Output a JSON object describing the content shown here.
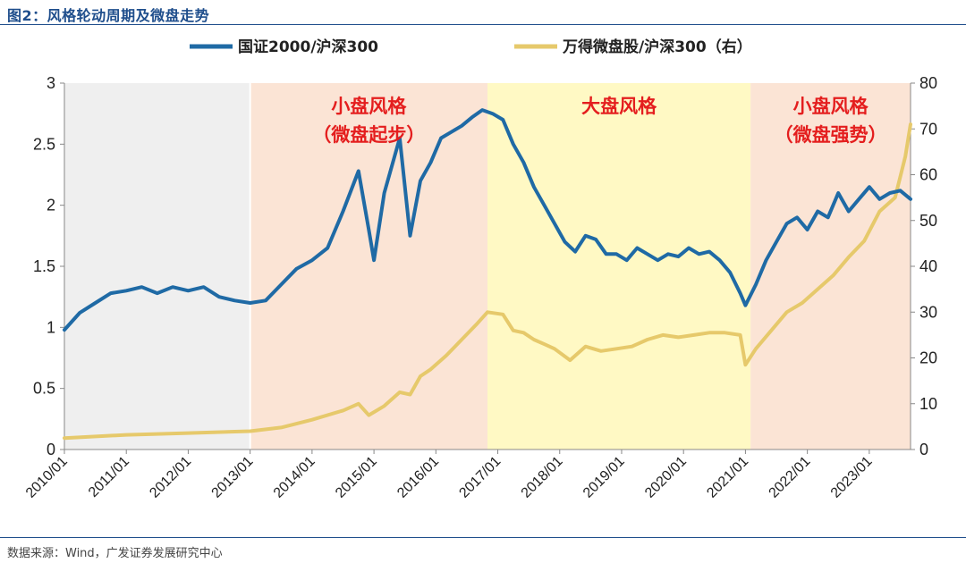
{
  "figure": {
    "title": "图2：风格轮动周期及微盘走势",
    "source": "数据来源：Wind，广发证券发展研究中心"
  },
  "chart_data": {
    "type": "line",
    "legend_position": "top-center",
    "grid": false,
    "x_ticks": [
      "2010/01",
      "2011/01",
      "2012/01",
      "2013/01",
      "2014/01",
      "2015/01",
      "2016/01",
      "2017/01",
      "2018/01",
      "2019/01",
      "2020/01",
      "2021/01",
      "2022/01",
      "2023/01"
    ],
    "x_range": [
      "2010-01",
      "2023-09"
    ],
    "y_left": {
      "min": 0,
      "max": 3,
      "ticks": [
        "0",
        "0.5",
        "1",
        "1.5",
        "2",
        "2.5",
        "3"
      ]
    },
    "y_right": {
      "min": 0,
      "max": 80,
      "ticks": [
        "0",
        "10",
        "20",
        "30",
        "40",
        "50",
        "60",
        "70",
        "80"
      ]
    },
    "regions": [
      {
        "start": "2010-01",
        "end": "2013-01",
        "color": "#efefef",
        "label": []
      },
      {
        "start": "2013-01",
        "end": "2016-11",
        "color": "#fbe4d5",
        "label": [
          "小盘风格",
          "（微盘起步）"
        ]
      },
      {
        "start": "2016-11",
        "end": "2021-02",
        "color": "#fff9c4",
        "label": [
          "大盘风格"
        ]
      },
      {
        "start": "2021-02",
        "end": "2023-09",
        "color": "#fbe4d5",
        "label": [
          "小盘风格",
          "（微盘强势）"
        ]
      }
    ],
    "series": [
      {
        "name": "国证2000/沪深300",
        "axis": "left",
        "color": "#1f6aa5",
        "x": [
          "2010-01",
          "2010-04",
          "2010-07",
          "2010-10",
          "2011-01",
          "2011-04",
          "2011-07",
          "2011-10",
          "2012-01",
          "2012-04",
          "2012-07",
          "2012-10",
          "2013-01",
          "2013-04",
          "2013-07",
          "2013-10",
          "2014-01",
          "2014-04",
          "2014-07",
          "2014-10",
          "2014-12",
          "2015-01",
          "2015-03",
          "2015-06",
          "2015-08",
          "2015-10",
          "2015-12",
          "2016-02",
          "2016-04",
          "2016-06",
          "2016-08",
          "2016-10",
          "2016-12",
          "2017-02",
          "2017-04",
          "2017-06",
          "2017-08",
          "2017-10",
          "2017-12",
          "2018-02",
          "2018-04",
          "2018-06",
          "2018-08",
          "2018-10",
          "2018-12",
          "2019-02",
          "2019-04",
          "2019-06",
          "2019-08",
          "2019-10",
          "2019-12",
          "2020-02",
          "2020-04",
          "2020-06",
          "2020-08",
          "2020-10",
          "2020-12",
          "2021-01",
          "2021-03",
          "2021-05",
          "2021-07",
          "2021-09",
          "2021-11",
          "2022-01",
          "2022-03",
          "2022-05",
          "2022-07",
          "2022-09",
          "2022-11",
          "2023-01",
          "2023-03",
          "2023-05",
          "2023-07",
          "2023-09"
        ],
        "values": [
          0.98,
          1.12,
          1.2,
          1.28,
          1.3,
          1.33,
          1.28,
          1.33,
          1.3,
          1.33,
          1.25,
          1.22,
          1.2,
          1.22,
          1.35,
          1.48,
          1.55,
          1.65,
          1.95,
          2.28,
          1.8,
          1.55,
          2.1,
          2.55,
          1.75,
          2.2,
          2.35,
          2.55,
          2.6,
          2.65,
          2.72,
          2.78,
          2.75,
          2.7,
          2.5,
          2.35,
          2.15,
          2.0,
          1.85,
          1.7,
          1.62,
          1.75,
          1.72,
          1.6,
          1.6,
          1.55,
          1.65,
          1.6,
          1.55,
          1.6,
          1.58,
          1.65,
          1.6,
          1.62,
          1.55,
          1.45,
          1.28,
          1.18,
          1.35,
          1.55,
          1.7,
          1.85,
          1.9,
          1.8,
          1.95,
          1.9,
          2.1,
          1.95,
          2.05,
          2.15,
          2.05,
          2.1,
          2.12,
          2.05
        ]
      },
      {
        "name": "万得微盘股/沪深300（右）",
        "axis": "right",
        "color": "#e6c96b",
        "x": [
          "2010-01",
          "2011-01",
          "2012-01",
          "2013-01",
          "2013-07",
          "2014-01",
          "2014-07",
          "2014-10",
          "2014-12",
          "2015-03",
          "2015-06",
          "2015-08",
          "2015-10",
          "2015-12",
          "2016-03",
          "2016-06",
          "2016-09",
          "2016-11",
          "2017-02",
          "2017-04",
          "2017-06",
          "2017-08",
          "2017-10",
          "2017-12",
          "2018-03",
          "2018-06",
          "2018-09",
          "2018-12",
          "2019-03",
          "2019-06",
          "2019-09",
          "2019-12",
          "2020-03",
          "2020-06",
          "2020-09",
          "2020-12",
          "2021-01",
          "2021-03",
          "2021-06",
          "2021-09",
          "2021-12",
          "2022-03",
          "2022-06",
          "2022-09",
          "2022-12",
          "2023-03",
          "2023-06",
          "2023-08",
          "2023-09"
        ],
        "values": [
          2.5,
          3.2,
          3.6,
          4.0,
          4.8,
          6.5,
          8.5,
          10.0,
          7.5,
          9.5,
          12.5,
          12.0,
          16.0,
          17.5,
          20.5,
          24.0,
          27.5,
          30.0,
          29.5,
          26.0,
          25.5,
          24.0,
          23.0,
          22.0,
          19.5,
          22.5,
          21.5,
          22.0,
          22.5,
          24.0,
          25.0,
          24.5,
          25.0,
          25.5,
          25.5,
          25.0,
          18.5,
          22.0,
          26.0,
          30.0,
          32.0,
          35.0,
          38.0,
          42.0,
          45.5,
          52.0,
          55.0,
          64.0,
          71.0
        ]
      }
    ]
  }
}
